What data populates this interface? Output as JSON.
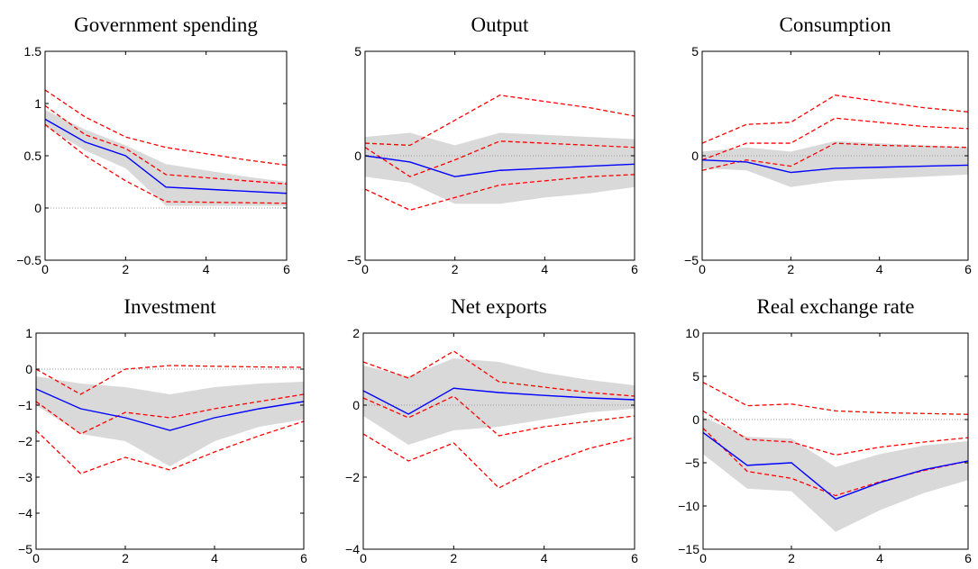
{
  "colors": {
    "median": "#0000ff",
    "bands": "#ff0000",
    "shaded": "#d9d9d9",
    "zero_line": "#9a9a9a"
  },
  "chart_data": [
    {
      "type": "line",
      "title": "Government spending",
      "x": [
        0,
        1,
        2,
        3,
        4,
        5,
        6
      ],
      "xlim": [
        0,
        6
      ],
      "ylim": [
        -0.5,
        1.5
      ],
      "xticks": [
        "0",
        "2",
        "4",
        "6"
      ],
      "yticks": [
        "−0.5",
        "0",
        "0.5",
        "1",
        "1.5"
      ],
      "ytick_values": [
        -0.5,
        0,
        0.5,
        1,
        1.5
      ],
      "shaded_band": {
        "lower": [
          0.78,
          0.55,
          0.38,
          0.02,
          0.02,
          0.02,
          0.02
        ],
        "upper": [
          0.94,
          0.75,
          0.6,
          0.42,
          0.36,
          0.3,
          0.25
        ]
      },
      "median": [
        0.85,
        0.63,
        0.5,
        0.2,
        0.18,
        0.16,
        0.14
      ],
      "dashed_lines": [
        [
          1.13,
          0.87,
          0.68,
          0.58,
          0.52,
          0.46,
          0.41
        ],
        [
          0.98,
          0.7,
          0.57,
          0.32,
          0.29,
          0.26,
          0.23
        ],
        [
          0.8,
          0.5,
          0.26,
          0.06,
          0.055,
          0.05,
          0.045
        ]
      ]
    },
    {
      "type": "line",
      "title": "Output",
      "x": [
        0,
        1,
        2,
        3,
        4,
        5,
        6
      ],
      "xlim": [
        0,
        6
      ],
      "ylim": [
        -5,
        5
      ],
      "xticks": [
        "0",
        "2",
        "4",
        "6"
      ],
      "yticks": [
        "−5",
        "0",
        "5"
      ],
      "ytick_values": [
        -5,
        0,
        5
      ],
      "shaded_band": {
        "lower": [
          -1.0,
          -1.3,
          -2.3,
          -2.3,
          -2.0,
          -1.8,
          -1.5
        ],
        "upper": [
          0.9,
          1.1,
          0.5,
          1.1,
          1.0,
          0.9,
          0.8
        ]
      },
      "median": [
        0.0,
        -0.3,
        -1.0,
        -0.7,
        -0.6,
        -0.5,
        -0.4
      ],
      "dashed_lines": [
        [
          0.6,
          0.5,
          1.7,
          2.9,
          2.6,
          2.3,
          1.9
        ],
        [
          0.4,
          -1.0,
          -0.2,
          0.7,
          0.6,
          0.5,
          0.4
        ],
        [
          -1.6,
          -2.6,
          -2.0,
          -1.4,
          -1.2,
          -1.0,
          -0.9
        ]
      ]
    },
    {
      "type": "line",
      "title": "Consumption",
      "x": [
        0,
        1,
        2,
        3,
        4,
        5,
        6
      ],
      "xlim": [
        0,
        6
      ],
      "ylim": [
        -5,
        5
      ],
      "xticks": [
        "0",
        "2",
        "4",
        "6"
      ],
      "yticks": [
        "−5",
        "0",
        "5"
      ],
      "ytick_values": [
        -5,
        0,
        5
      ],
      "shaded_band": {
        "lower": [
          -0.6,
          -0.7,
          -1.5,
          -1.2,
          -1.1,
          -1.0,
          -0.9
        ],
        "upper": [
          0.2,
          0.4,
          0.2,
          0.7,
          0.6,
          0.5,
          0.4
        ]
      },
      "median": [
        -0.2,
        -0.3,
        -0.8,
        -0.6,
        -0.55,
        -0.5,
        -0.45
      ],
      "dashed_lines": [
        [
          0.6,
          1.5,
          1.6,
          2.9,
          2.6,
          2.3,
          2.1
        ],
        [
          -0.2,
          0.6,
          0.6,
          1.8,
          1.6,
          1.4,
          1.3
        ],
        [
          -0.7,
          -0.2,
          -0.5,
          0.6,
          0.5,
          0.45,
          0.4
        ]
      ]
    },
    {
      "type": "line",
      "title": "Investment",
      "x": [
        0,
        1,
        2,
        3,
        4,
        5,
        6
      ],
      "xlim": [
        0,
        6
      ],
      "ylim": [
        -5,
        1
      ],
      "xticks": [
        "0",
        "2",
        "4",
        "6"
      ],
      "yticks": [
        "−5",
        "−4",
        "−3",
        "−2",
        "−1",
        "0",
        "1"
      ],
      "ytick_values": [
        -5,
        -4,
        -3,
        -2,
        -1,
        0,
        1
      ],
      "shaded_band": {
        "lower": [
          -1.0,
          -1.8,
          -2.0,
          -2.7,
          -2.0,
          -1.6,
          -1.4
        ],
        "upper": [
          -0.2,
          -0.4,
          -0.5,
          -0.7,
          -0.5,
          -0.4,
          -0.35
        ]
      },
      "median": [
        -0.55,
        -1.1,
        -1.35,
        -1.7,
        -1.35,
        -1.1,
        -0.9
      ],
      "dashed_lines": [
        [
          0.0,
          -0.7,
          0.0,
          0.1,
          0.08,
          0.06,
          0.05
        ],
        [
          -0.9,
          -1.8,
          -1.2,
          -1.35,
          -1.1,
          -0.9,
          -0.7
        ],
        [
          -1.7,
          -2.9,
          -2.45,
          -2.8,
          -2.3,
          -1.85,
          -1.45
        ]
      ]
    },
    {
      "type": "line",
      "title": "Net exports",
      "x": [
        0,
        1,
        2,
        3,
        4,
        5,
        6
      ],
      "xlim": [
        0,
        6
      ],
      "ylim": [
        -4,
        2
      ],
      "xticks": [
        "0",
        "2",
        "4",
        "6"
      ],
      "yticks": [
        "−4",
        "−2",
        "0",
        "2"
      ],
      "ytick_values": [
        -4,
        -2,
        0,
        2
      ],
      "shaded_band": {
        "lower": [
          -0.3,
          -1.1,
          -0.7,
          -0.6,
          -0.4,
          -0.2,
          -0.1
        ],
        "upper": [
          1.1,
          0.8,
          1.3,
          1.2,
          0.9,
          0.7,
          0.55
        ]
      },
      "median": [
        0.4,
        -0.25,
        0.47,
        0.35,
        0.27,
        0.2,
        0.15
      ],
      "dashed_lines": [
        [
          1.2,
          0.75,
          1.5,
          0.65,
          0.5,
          0.35,
          0.25
        ],
        [
          0.2,
          -0.35,
          0.25,
          -0.85,
          -0.6,
          -0.45,
          -0.3
        ],
        [
          -0.8,
          -1.55,
          -1.05,
          -2.3,
          -1.65,
          -1.2,
          -0.9
        ]
      ]
    },
    {
      "type": "line",
      "title": "Real exchange rate",
      "x": [
        0,
        1,
        2,
        3,
        4,
        5,
        6
      ],
      "xlim": [
        0,
        6
      ],
      "ylim": [
        -15,
        10
      ],
      "xticks": [
        "0",
        "2",
        "4",
        "6"
      ],
      "yticks": [
        "−15",
        "−10",
        "−5",
        "0",
        "5",
        "10"
      ],
      "ytick_values": [
        -15,
        -10,
        -5,
        0,
        5,
        10
      ],
      "shaded_band": {
        "lower": [
          -4.0,
          -8.0,
          -8.3,
          -13.0,
          -10.5,
          -8.5,
          -7.0
        ],
        "upper": [
          0.3,
          -2.0,
          -2.2,
          -5.5,
          -4.0,
          -3.0,
          -2.5
        ]
      },
      "median": [
        -1.5,
        -5.3,
        -5.0,
        -9.2,
        -7.3,
        -5.8,
        -4.8
      ],
      "dashed_lines": [
        [
          4.3,
          1.6,
          1.8,
          1.0,
          0.8,
          0.7,
          0.6
        ],
        [
          1.0,
          -2.3,
          -2.6,
          -4.1,
          -3.2,
          -2.6,
          -2.1
        ],
        [
          -1.0,
          -6.0,
          -6.8,
          -8.8,
          -7.2,
          -5.9,
          -4.8
        ]
      ]
    }
  ]
}
